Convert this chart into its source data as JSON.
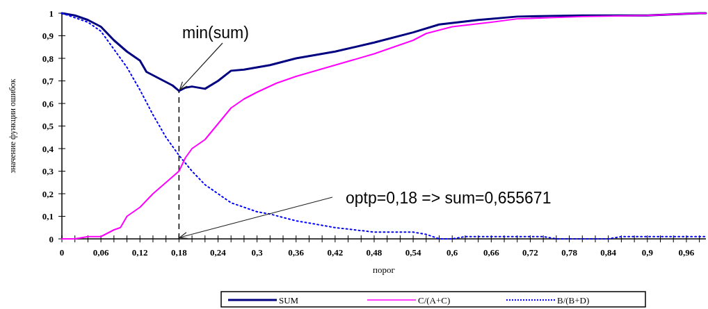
{
  "chart_data": {
    "type": "line",
    "xlabel": "порог",
    "ylabel": "значение функции ошибок",
    "xlim": [
      0,
      0.99
    ],
    "ylim": [
      0,
      1
    ],
    "xticks": [
      0,
      {
        "value": 0.02,
        "label": null
      },
      {
        "value": 0.04,
        "label": null
      },
      {
        "value": 0.06,
        "label": "0,06"
      },
      {
        "value": 0.08,
        "label": null
      },
      {
        "value": 0.1,
        "label": null
      },
      {
        "value": 0.12,
        "label": "0,12"
      },
      {
        "value": 0.14,
        "label": null
      },
      {
        "value": 0.16,
        "label": null
      },
      {
        "value": 0.18,
        "label": "0,18"
      },
      {
        "value": 0.2,
        "label": null
      },
      {
        "value": 0.22,
        "label": null
      },
      {
        "value": 0.24,
        "label": "0,24"
      },
      {
        "value": 0.26,
        "label": null
      },
      {
        "value": 0.28,
        "label": null
      },
      {
        "value": 0.3,
        "label": "0,3"
      },
      {
        "value": 0.32,
        "label": null
      },
      {
        "value": 0.34,
        "label": null
      },
      {
        "value": 0.36,
        "label": "0,36"
      },
      {
        "value": 0.38,
        "label": null
      },
      {
        "value": 0.4,
        "label": null
      },
      {
        "value": 0.42,
        "label": "0,42"
      },
      {
        "value": 0.44,
        "label": null
      },
      {
        "value": 0.46,
        "label": null
      },
      {
        "value": 0.48,
        "label": "0,48"
      },
      {
        "value": 0.5,
        "label": null
      },
      {
        "value": 0.52,
        "label": null
      },
      {
        "value": 0.54,
        "label": "0,54"
      },
      {
        "value": 0.56,
        "label": null
      },
      {
        "value": 0.58,
        "label": null
      },
      {
        "value": 0.6,
        "label": "0,6"
      },
      {
        "value": 0.62,
        "label": null
      },
      {
        "value": 0.64,
        "label": null
      },
      {
        "value": 0.66,
        "label": "0,66"
      },
      {
        "value": 0.68,
        "label": null
      },
      {
        "value": 0.7,
        "label": null
      },
      {
        "value": 0.72,
        "label": "0,72"
      },
      {
        "value": 0.74,
        "label": null
      },
      {
        "value": 0.76,
        "label": null
      },
      {
        "value": 0.78,
        "label": "0,78"
      },
      {
        "value": 0.8,
        "label": null
      },
      {
        "value": 0.82,
        "label": null
      },
      {
        "value": 0.84,
        "label": "0,84"
      },
      {
        "value": 0.86,
        "label": null
      },
      {
        "value": 0.88,
        "label": null
      },
      {
        "value": 0.9,
        "label": "0,9"
      },
      {
        "value": 0.92,
        "label": null
      },
      {
        "value": 0.94,
        "label": null
      },
      {
        "value": 0.96,
        "label": "0,96"
      },
      {
        "value": 0.98,
        "label": null
      }
    ],
    "yticks": [
      0,
      {
        "value": 0.1,
        "label": "0,1"
      },
      {
        "value": 0.2,
        "label": "0,2"
      },
      {
        "value": 0.3,
        "label": "0,3"
      },
      {
        "value": 0.4,
        "label": "0,4"
      },
      {
        "value": 0.5,
        "label": "0,5"
      },
      {
        "value": 0.6,
        "label": "0,6"
      },
      {
        "value": 0.7,
        "label": "0,7"
      },
      {
        "value": 0.8,
        "label": "0,8"
      },
      {
        "value": 0.9,
        "label": "0,9"
      },
      1
    ],
    "grid": false,
    "legend": "bottom",
    "marker": "none",
    "series": [
      {
        "name": "SUM",
        "color": "#000080",
        "line_style": "solid",
        "x": [
          0,
          0.02,
          0.04,
          0.06,
          0.08,
          0.1,
          0.12,
          0.13,
          0.15,
          0.17,
          0.18,
          0.19,
          0.2,
          0.22,
          0.24,
          0.26,
          0.28,
          0.32,
          0.36,
          0.42,
          0.48,
          0.54,
          0.58,
          0.64,
          0.7,
          0.8,
          0.9,
          0.98,
          0.99
        ],
        "values": [
          1,
          0.99,
          0.97,
          0.94,
          0.88,
          0.83,
          0.79,
          0.74,
          0.71,
          0.68,
          0.656,
          0.67,
          0.675,
          0.665,
          0.7,
          0.745,
          0.75,
          0.77,
          0.8,
          0.83,
          0.87,
          0.915,
          0.95,
          0.97,
          0.985,
          0.99,
          0.99,
          1,
          1
        ]
      },
      {
        "name": "C/(A+C)",
        "color": "#ff00ff",
        "line_style": "solid",
        "x": [
          0,
          0.02,
          0.04,
          0.06,
          0.08,
          0.09,
          0.1,
          0.12,
          0.14,
          0.16,
          0.18,
          0.19,
          0.2,
          0.22,
          0.24,
          0.26,
          0.28,
          0.3,
          0.33,
          0.36,
          0.42,
          0.48,
          0.54,
          0.56,
          0.6,
          0.66,
          0.7,
          0.8,
          0.9,
          0.98,
          0.99
        ],
        "values": [
          0,
          0,
          0.01,
          0.01,
          0.04,
          0.05,
          0.1,
          0.14,
          0.2,
          0.25,
          0.3,
          0.36,
          0.4,
          0.44,
          0.51,
          0.58,
          0.62,
          0.65,
          0.69,
          0.72,
          0.77,
          0.82,
          0.88,
          0.91,
          0.94,
          0.96,
          0.975,
          0.985,
          0.99,
          1,
          1
        ]
      },
      {
        "name": "B/(B+D)",
        "color": "#0000ff",
        "line_style": "dotted",
        "x": [
          0,
          0.04,
          0.06,
          0.08,
          0.1,
          0.12,
          0.14,
          0.16,
          0.18,
          0.2,
          0.22,
          0.24,
          0.26,
          0.3,
          0.32,
          0.36,
          0.42,
          0.48,
          0.54,
          0.56,
          0.58,
          0.6,
          0.62,
          0.66,
          0.68,
          0.74,
          0.76,
          0.84,
          0.86,
          0.99
        ],
        "values": [
          1,
          0.96,
          0.92,
          0.84,
          0.76,
          0.66,
          0.55,
          0.45,
          0.37,
          0.3,
          0.24,
          0.2,
          0.16,
          0.12,
          0.11,
          0.08,
          0.05,
          0.03,
          0.03,
          0.02,
          0,
          0,
          0.01,
          0.01,
          0.01,
          0.01,
          0,
          0,
          0.01,
          0.01
        ]
      }
    ],
    "ref_lines": [
      {
        "axis": "x",
        "value": 0.18,
        "line_style": "dashed",
        "color": "#000000"
      }
    ],
    "annotations": [
      {
        "text": "min(sum)",
        "x": 0.18,
        "y": 0.655
      },
      {
        "text": "optp=0,18 => sum=0,655671",
        "x": 0.18,
        "y": 0
      }
    ]
  }
}
